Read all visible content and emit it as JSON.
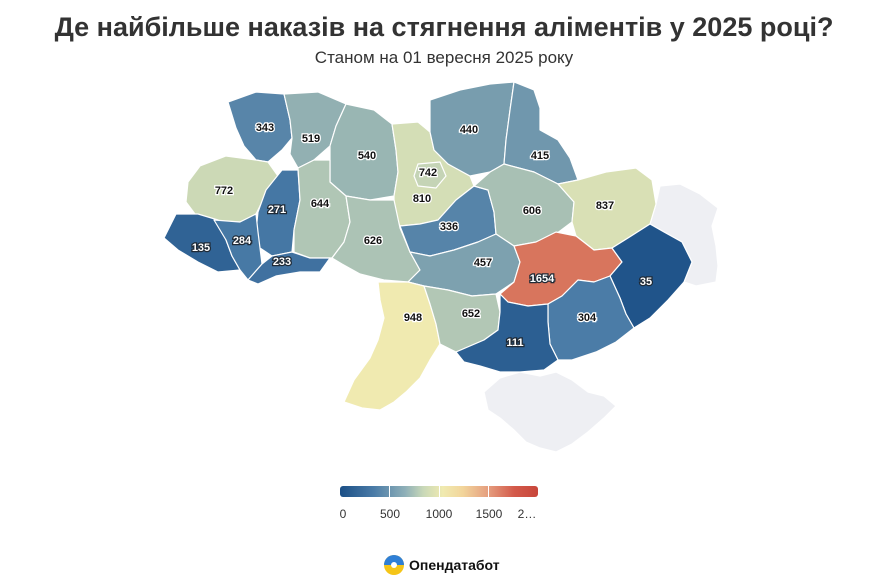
{
  "title": "Де найбільше наказів на стягнення аліментів у 2025 році?",
  "subtitle": "Станом на 01 вересня 2025 року",
  "color_scale": {
    "low": "#1b4f86",
    "mid": "#f0eab0",
    "high": "#c8463b",
    "no_data": "#eeeff3",
    "ticks": [
      "0",
      "500",
      "1000",
      "1500",
      "2…"
    ]
  },
  "regions": [
    {
      "id": "volyn",
      "value": "343"
    },
    {
      "id": "rivne",
      "value": "519"
    },
    {
      "id": "zhytomyr",
      "value": "540"
    },
    {
      "id": "kyiv-city",
      "value": "742"
    },
    {
      "id": "kyiv-oblast",
      "value": "810"
    },
    {
      "id": "chernihiv",
      "value": "440"
    },
    {
      "id": "sumy",
      "value": "415"
    },
    {
      "id": "lviv",
      "value": "772"
    },
    {
      "id": "ternopil",
      "value": "271"
    },
    {
      "id": "khmelnytskyi",
      "value": "644"
    },
    {
      "id": "poltava",
      "value": "606"
    },
    {
      "id": "kharkiv",
      "value": "837"
    },
    {
      "id": "cherkasy",
      "value": "336"
    },
    {
      "id": "vinnytsia",
      "value": "626"
    },
    {
      "id": "zakarpattia",
      "value": "135"
    },
    {
      "id": "ivano-frankivsk",
      "value": "284"
    },
    {
      "id": "chernivtsi",
      "value": "233"
    },
    {
      "id": "kirovohrad",
      "value": "457"
    },
    {
      "id": "dnipropetrovsk",
      "value": "1654"
    },
    {
      "id": "donetsk",
      "value": "35"
    },
    {
      "id": "luhansk",
      "value": ""
    },
    {
      "id": "zaporizhzhia",
      "value": "304"
    },
    {
      "id": "odesa",
      "value": "948"
    },
    {
      "id": "mykolaiv",
      "value": "652"
    },
    {
      "id": "kherson",
      "value": "111"
    },
    {
      "id": "crimea",
      "value": ""
    }
  ],
  "brand": {
    "name": "Опендатабот"
  }
}
